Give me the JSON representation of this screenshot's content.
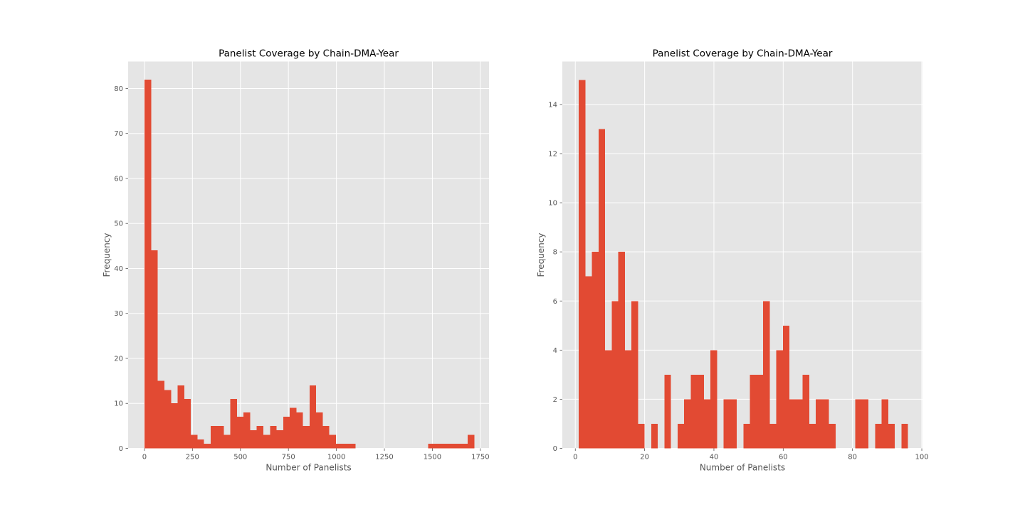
{
  "chart_data": [
    {
      "type": "histogram",
      "title": "Panelist Coverage by Chain-DMA-Year",
      "xlabel": "Number of Panelists",
      "ylabel": "Frequency",
      "xlim": [
        -85,
        1795
      ],
      "ylim": [
        0,
        86
      ],
      "xticks": [
        0,
        250,
        500,
        750,
        1000,
        1250,
        1500,
        1750
      ],
      "yticks": [
        0,
        10,
        20,
        30,
        40,
        50,
        60,
        70,
        80
      ],
      "grid": true,
      "bar_color": "#E24A33",
      "background": "#E5E5E5",
      "bin_start": 1,
      "bin_width": 34.36,
      "values": [
        82,
        44,
        15,
        13,
        10,
        14,
        11,
        3,
        2,
        1,
        5,
        5,
        3,
        11,
        7,
        8,
        4,
        5,
        3,
        5,
        4,
        7,
        9,
        8,
        5,
        14,
        8,
        5,
        3,
        1,
        1,
        1,
        0,
        0,
        0,
        0,
        0,
        0,
        0,
        0,
        0,
        0,
        0,
        1,
        1,
        1,
        1,
        1,
        1,
        3
      ]
    },
    {
      "type": "histogram",
      "title": "Panelist Coverage by Chain-DMA-Year",
      "xlabel": "Number of Panelists",
      "ylabel": "Frequency",
      "xlim": [
        -3.75,
        100.2
      ],
      "ylim": [
        0,
        15.75
      ],
      "xticks": [
        0,
        20,
        40,
        60,
        80,
        100
      ],
      "yticks": [
        0,
        2,
        4,
        6,
        8,
        10,
        12,
        14
      ],
      "grid": true,
      "bar_color": "#E24A33",
      "background": "#E5E5E5",
      "bin_start": 1,
      "bin_width": 1.9,
      "values": [
        15,
        7,
        8,
        13,
        4,
        6,
        8,
        4,
        6,
        1,
        0,
        1,
        0,
        3,
        0,
        1,
        2,
        3,
        3,
        2,
        4,
        0,
        2,
        2,
        0,
        1,
        3,
        3,
        6,
        1,
        4,
        5,
        2,
        2,
        3,
        1,
        2,
        2,
        1,
        0,
        0,
        0,
        2,
        2,
        0,
        1,
        2,
        1,
        0,
        1
      ]
    }
  ]
}
